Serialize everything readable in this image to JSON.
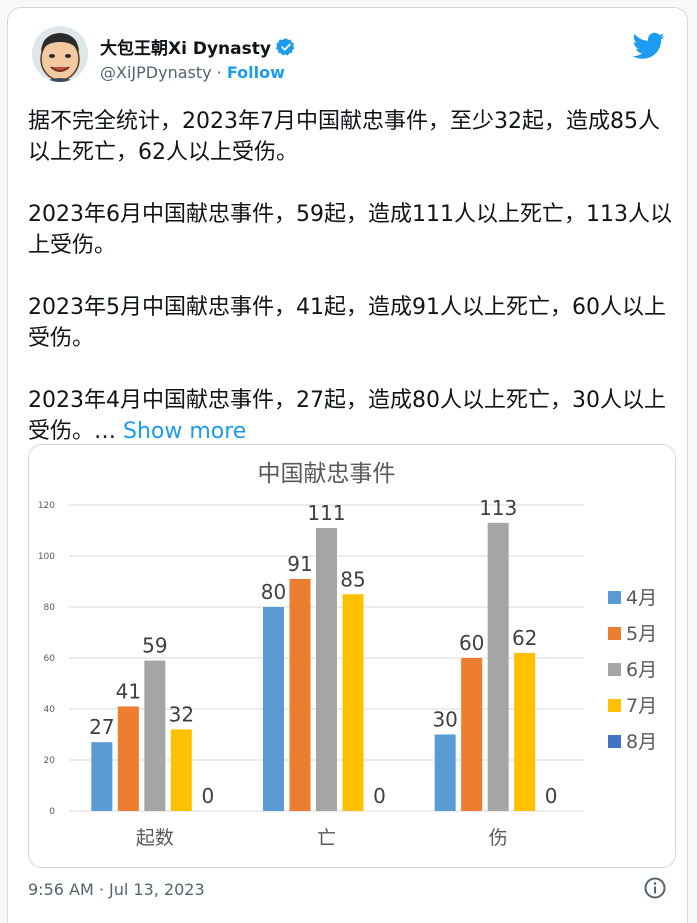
{
  "tweet": {
    "display_name": "大包王朝Xi Dynasty",
    "handle": "@XiJPDynasty",
    "separator": " · ",
    "follow_label": "Follow",
    "paragraphs": [
      "据不完全统计，2023年7月中国献忠事件，至少32起，造成85人以上死亡，62人以上受伤。",
      "2023年6月中国献忠事件，59起，造成111人以上死亡，113人以上受伤。",
      "2023年5月中国献忠事件，41起，造成91人以上死亡，60人以上受伤。",
      "2023年4月中国献忠事件，27起，造成80人以上死亡，30人以上受伤。… "
    ],
    "show_more": "Show more",
    "timestamp": "9:56 AM · Jul 13, 2023"
  },
  "colors": {
    "accent": "#1d9bf0",
    "series": [
      "#5b9bd5",
      "#ed7d31",
      "#a5a5a5",
      "#ffc000",
      "#4472c4"
    ]
  },
  "chart_data": {
    "type": "bar",
    "title": "中国献忠事件",
    "categories": [
      "起数",
      "亡",
      "伤"
    ],
    "series": [
      {
        "name": "4月",
        "values": [
          27,
          80,
          30
        ]
      },
      {
        "name": "5月",
        "values": [
          41,
          91,
          60
        ]
      },
      {
        "name": "6月",
        "values": [
          59,
          111,
          113
        ]
      },
      {
        "name": "7月",
        "values": [
          32,
          85,
          62
        ]
      },
      {
        "name": "8月",
        "values": [
          0,
          0,
          0
        ]
      }
    ],
    "yticks": [
      0,
      20,
      40,
      60,
      80,
      100,
      120
    ],
    "ylim": [
      0,
      120
    ],
    "grid": true,
    "legend": "right"
  }
}
